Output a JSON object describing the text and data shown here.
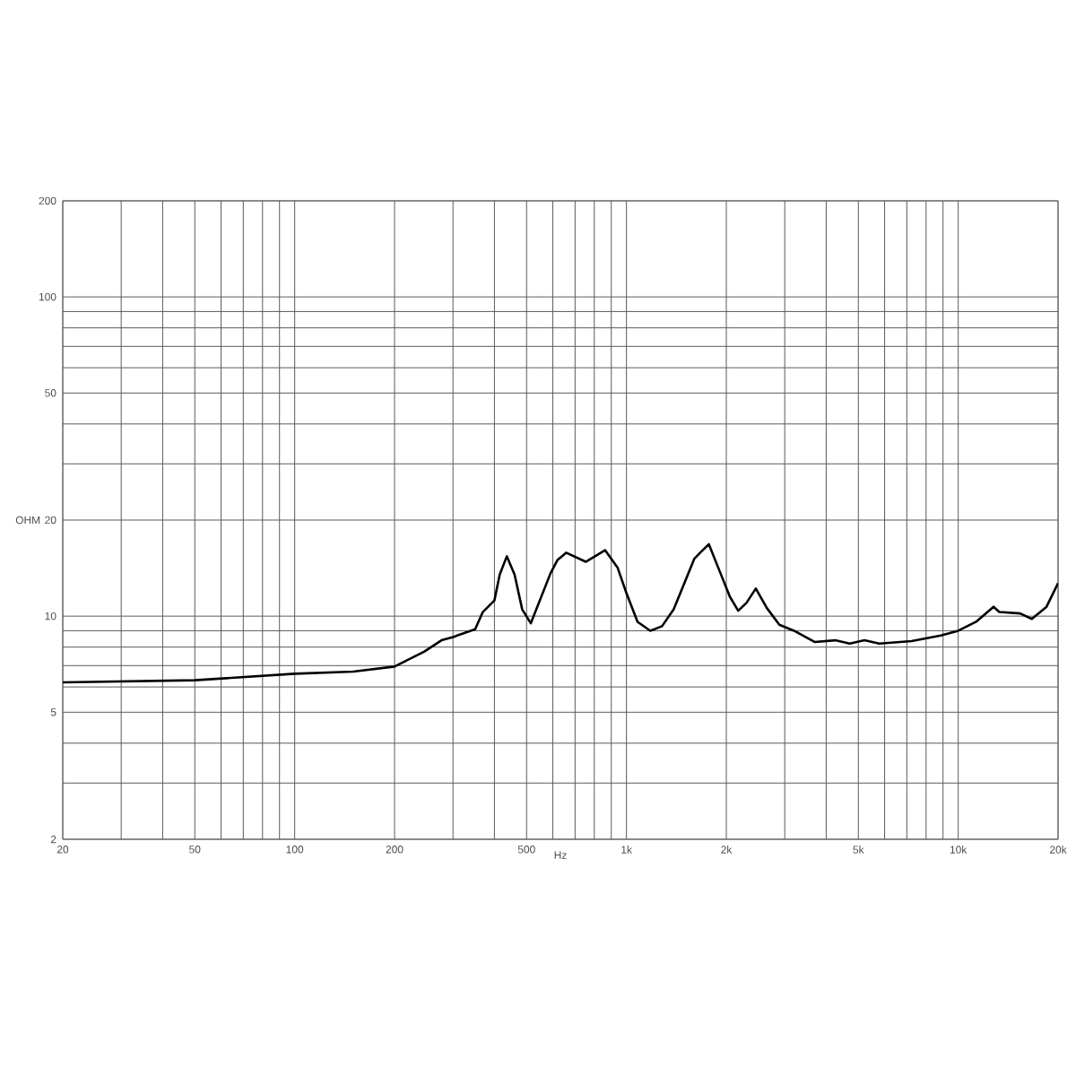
{
  "chart_data": {
    "type": "line",
    "xlabel": "Hz",
    "ylabel": "OHM",
    "log": "xy",
    "grid": true,
    "xlim": [
      20,
      20000
    ],
    "ylim": [
      2,
      200
    ],
    "xticks": [
      20,
      {
        "value": 30,
        "label": null
      },
      {
        "value": 40,
        "label": null
      },
      50,
      {
        "value": 60,
        "label": null
      },
      {
        "value": 70,
        "label": null
      },
      {
        "value": 80,
        "label": null
      },
      {
        "value": 90,
        "label": null
      },
      100,
      200,
      {
        "value": 300,
        "label": null
      },
      {
        "value": 400,
        "label": null
      },
      500,
      {
        "value": 600,
        "label": null
      },
      {
        "value": 700,
        "label": null
      },
      {
        "value": 800,
        "label": null
      },
      {
        "value": 900,
        "label": null
      },
      {
        "value": 1000,
        "label": "1k"
      },
      {
        "value": 2000,
        "label": "2k"
      },
      {
        "value": 3000,
        "label": null
      },
      {
        "value": 4000,
        "label": null
      },
      {
        "value": 5000,
        "label": "5k"
      },
      {
        "value": 6000,
        "label": null
      },
      {
        "value": 7000,
        "label": null
      },
      {
        "value": 8000,
        "label": null
      },
      {
        "value": 9000,
        "label": null
      },
      {
        "value": 10000,
        "label": "10k"
      },
      {
        "value": 20000,
        "label": "20k"
      }
    ],
    "yticks": [
      2,
      {
        "value": 3,
        "label": null
      },
      {
        "value": 4,
        "label": null
      },
      5,
      {
        "value": 6,
        "label": null
      },
      {
        "value": 7,
        "label": null
      },
      {
        "value": 8,
        "label": null
      },
      {
        "value": 9,
        "label": null
      },
      10,
      20,
      {
        "value": 30,
        "label": null
      },
      {
        "value": 40,
        "label": null
      },
      50,
      {
        "value": 60,
        "label": null
      },
      {
        "value": 70,
        "label": null
      },
      {
        "value": 80,
        "label": null
      },
      {
        "value": 90,
        "label": null
      },
      100,
      200
    ],
    "x": [
      20,
      50,
      100,
      150,
      200,
      246,
      277,
      300,
      350,
      369,
      400,
      415,
      436,
      460,
      485,
      515,
      590,
      620,
      658,
      754,
      862,
      940,
      1000,
      1080,
      1180,
      1280,
      1388,
      1500,
      1600,
      1668,
      1772,
      1922,
      2050,
      2172,
      2300,
      2454,
      2650,
      2890,
      3200,
      3690,
      4256,
      4712,
      5216,
      5780,
      7230,
      8860,
      10000,
      11320,
      12780,
      13300,
      15360,
      16670,
      18460,
      20000
    ],
    "series": [
      {
        "color": "#000000",
        "values": [
          6.2,
          6.3,
          6.6,
          6.7,
          6.95,
          7.75,
          8.4,
          8.6,
          9.1,
          10.3,
          11.2,
          13.5,
          15.4,
          13.5,
          10.5,
          9.5,
          13.6,
          15.0,
          15.8,
          14.8,
          16.1,
          14.2,
          11.8,
          9.6,
          9.0,
          9.3,
          10.5,
          12.8,
          15.1,
          15.8,
          16.8,
          13.6,
          11.5,
          10.4,
          11.0,
          12.2,
          10.6,
          9.4,
          9.0,
          8.3,
          8.4,
          8.2,
          8.4,
          8.2,
          8.35,
          8.7,
          9.0,
          9.6,
          10.7,
          10.3,
          10.2,
          9.8,
          10.7,
          12.7
        ]
      }
    ]
  }
}
